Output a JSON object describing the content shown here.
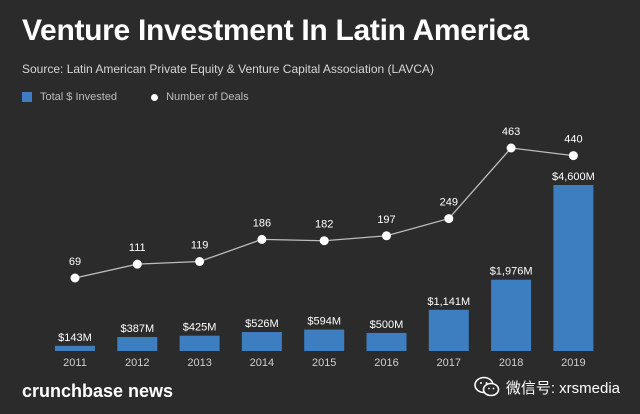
{
  "chart_data": {
    "type": "bar",
    "title": "Venture Investment In Latin America",
    "subtitle": "Source: Latin American Private Equity & Venture Capital Association (LAVCA)",
    "categories": [
      "2011",
      "2012",
      "2013",
      "2014",
      "2015",
      "2016",
      "2017",
      "2018",
      "2019"
    ],
    "series": [
      {
        "name": "Total $ Invested",
        "type": "bar",
        "values": [
          143,
          387,
          425,
          526,
          594,
          500,
          1141,
          1976,
          4600
        ],
        "labels": [
          "$143M",
          "$387M",
          "$425M",
          "$526M",
          "$594M",
          "$500M",
          "$1,141M",
          "$1,976M",
          "$4,600M"
        ],
        "color": "#3d7ec1"
      },
      {
        "name": "Number of Deals",
        "type": "line",
        "values": [
          69,
          111,
          119,
          186,
          182,
          197,
          249,
          463,
          440
        ],
        "labels": [
          "69",
          "111",
          "119",
          "186",
          "182",
          "197",
          "249",
          "463",
          "440"
        ],
        "color": "#ffffff"
      }
    ],
    "legend_position": "top-left",
    "grid": false
  },
  "legend": {
    "invested_label": "Total $ Invested",
    "deals_label": "Number of Deals"
  },
  "footer": {
    "brand": "crunchbase news",
    "wechat_text": "微信号: xrsmedia"
  },
  "colors": {
    "background": "#2b2b2b",
    "bar": "#3d7ec1",
    "line": "#ffffff"
  },
  "icons": {
    "wechat": "wechat-icon"
  }
}
